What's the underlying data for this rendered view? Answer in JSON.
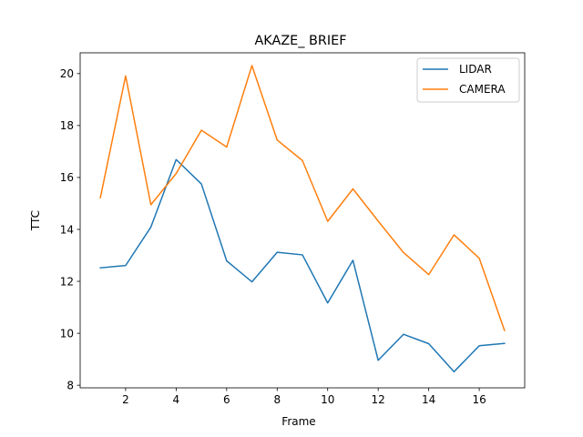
{
  "chart_data": {
    "type": "line",
    "title": "AKAZE_ BRIEF",
    "xlabel": "Frame",
    "ylabel": "TTC",
    "x": [
      1,
      2,
      3,
      4,
      5,
      6,
      7,
      8,
      9,
      10,
      11,
      12,
      13,
      14,
      15,
      16,
      17
    ],
    "xlim": [
      0.2,
      17.8
    ],
    "ylim": [
      7.9,
      20.8
    ],
    "xticks": [
      2,
      4,
      6,
      8,
      10,
      12,
      14,
      16
    ],
    "yticks": [
      8,
      10,
      12,
      14,
      16,
      18,
      20
    ],
    "grid": false,
    "legend_position": "top-right",
    "series": [
      {
        "name": "LIDAR",
        "color": "#1f77b4",
        "values": [
          12.52,
          12.61,
          14.09,
          16.69,
          15.75,
          12.79,
          11.98,
          13.12,
          13.02,
          11.17,
          12.81,
          8.96,
          9.96,
          9.6,
          8.52,
          9.52,
          9.61
        ]
      },
      {
        "name": "CAMERA",
        "color": "#ff7f0e",
        "values": [
          15.22,
          19.91,
          14.95,
          16.15,
          17.82,
          17.17,
          20.31,
          17.44,
          16.65,
          14.31,
          15.56,
          14.32,
          13.11,
          12.26,
          13.79,
          12.89,
          10.11
        ]
      }
    ]
  }
}
